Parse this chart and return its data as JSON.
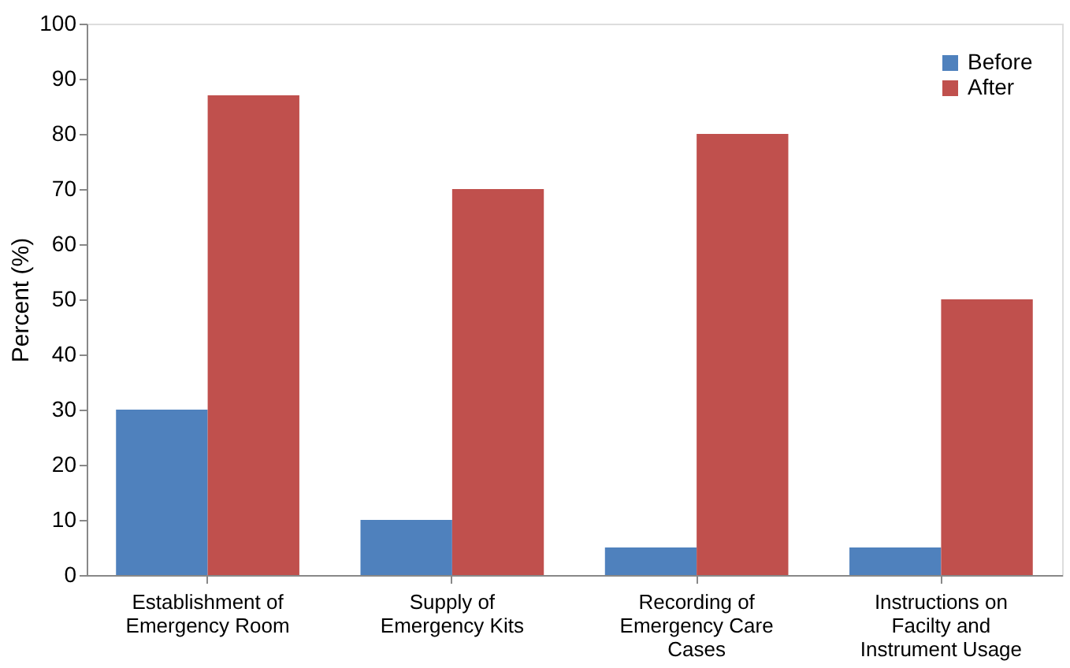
{
  "chart_data": {
    "type": "bar",
    "ylabel": "Percent (%)",
    "categories": [
      "Establishment of Emergency Room",
      "Supply of Emergency Kits",
      "Recording of Emergency Care Cases",
      "Instructions on Facilty and Instrument Usage"
    ],
    "series": [
      {
        "name": "Before",
        "color": "#4f81bd",
        "values": [
          30,
          10,
          5,
          5
        ]
      },
      {
        "name": "After",
        "color": "#c0504d",
        "values": [
          87,
          70,
          80,
          50
        ]
      }
    ],
    "ylim": [
      0,
      100
    ],
    "yticks": [
      0,
      10,
      20,
      30,
      40,
      50,
      60,
      70,
      80,
      90,
      100
    ],
    "grid": false,
    "legend": "top right"
  }
}
